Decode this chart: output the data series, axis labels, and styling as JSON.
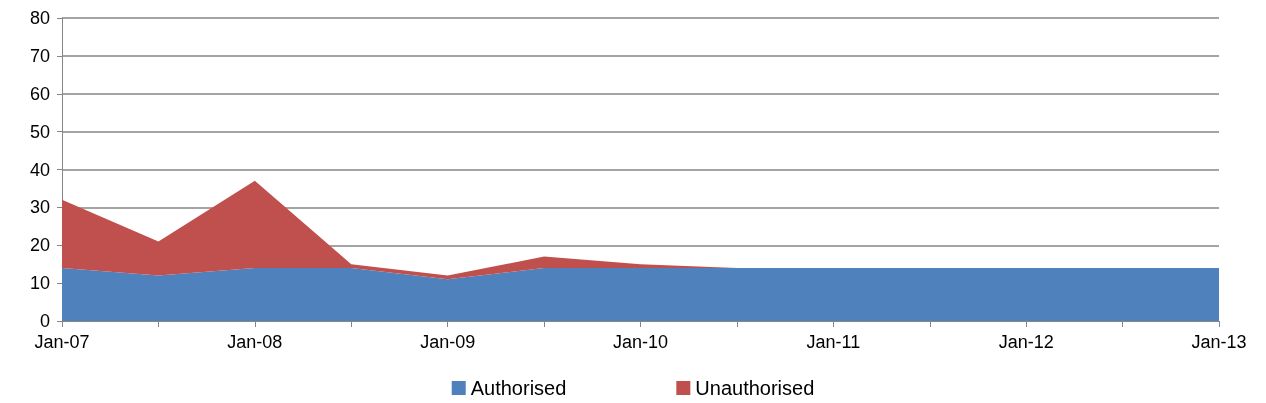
{
  "chart_data": {
    "type": "area",
    "stacked": true,
    "categories": [
      "Jan-07",
      null,
      "Jan-08",
      null,
      "Jan-09",
      null,
      "Jan-10",
      null,
      "Jan-11",
      null,
      "Jan-12",
      null,
      "Jan-13"
    ],
    "series": [
      {
        "name": "Authorised",
        "color": "#4f81bd",
        "values": [
          14,
          12,
          14,
          14,
          11,
          14,
          14,
          14,
          14,
          14,
          14,
          14,
          14
        ]
      },
      {
        "name": "Unauthorised",
        "color": "#c0504d",
        "values": [
          18,
          9,
          23,
          1,
          1,
          3,
          1,
          0,
          0,
          0,
          0,
          0,
          0
        ]
      }
    ],
    "ylim": [
      0,
      80
    ],
    "yticks": [
      0,
      10,
      20,
      30,
      40,
      50,
      60,
      70,
      80
    ],
    "grid": "y",
    "legend": "bottom"
  }
}
